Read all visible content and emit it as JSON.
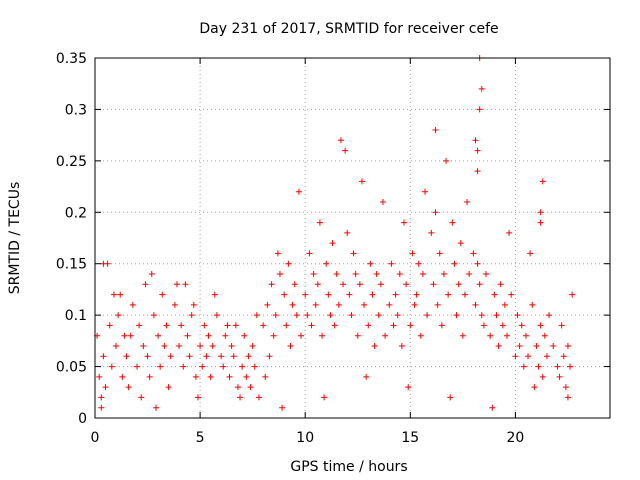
{
  "chart_data": {
    "type": "scatter",
    "title": "Day 231 of 2017, SRMTID for receiver cefe",
    "xlabel": "GPS time / hours",
    "ylabel": "SRMTID / TECUs",
    "xlim": [
      0,
      24.5
    ],
    "ylim": [
      0,
      0.35
    ],
    "x_ticks": [
      0,
      5,
      10,
      15,
      20
    ],
    "x_tick_labels": [
      "0",
      "5",
      "10",
      "15",
      "20"
    ],
    "y_ticks": [
      0,
      0.05,
      0.1,
      0.15,
      0.2,
      0.25,
      0.3,
      0.35
    ],
    "y_tick_labels": [
      "0",
      "0.05",
      "0.1",
      "0.15",
      "0.2",
      "0.25",
      "0.3",
      "0.35"
    ],
    "grid": true,
    "marker": "plus",
    "color": "#ff0000",
    "series": [
      {
        "x": [
          0.1,
          0.2,
          0.3,
          0.4,
          0.5,
          0.6,
          0.7,
          0.8,
          1.0,
          1.1,
          1.2,
          1.3,
          1.4,
          1.5,
          1.6,
          1.8,
          2.0,
          2.1,
          2.2,
          2.3,
          2.4,
          2.5,
          2.6,
          2.8,
          3.0,
          3.1,
          3.2,
          3.3,
          3.4,
          3.5,
          3.6,
          3.8,
          4.0,
          4.1,
          4.2,
          4.3,
          4.4,
          4.5,
          4.6,
          4.8,
          5.0,
          5.1,
          5.2,
          5.3,
          5.4,
          5.5,
          5.6,
          5.8,
          6.0,
          6.1,
          6.2,
          6.3,
          6.4,
          6.5,
          6.6,
          6.8,
          7.0,
          7.1,
          7.2,
          7.3,
          7.4,
          7.5,
          7.6,
          7.8,
          8.0,
          8.1,
          8.2,
          8.3,
          8.4,
          8.5,
          8.6,
          8.8,
          9.0,
          9.1,
          9.2,
          9.3,
          9.4,
          9.5,
          9.6,
          9.8,
          10.0,
          10.1,
          10.2,
          10.3,
          10.4,
          10.5,
          10.6,
          10.8,
          11.0,
          11.1,
          11.2,
          11.3,
          11.4,
          11.5,
          11.6,
          11.8,
          12.0,
          12.1,
          12.2,
          12.3,
          12.4,
          12.5,
          12.6,
          12.8,
          13.0,
          13.1,
          13.2,
          13.3,
          13.4,
          13.5,
          13.6,
          13.8,
          14.0,
          14.1,
          14.2,
          14.3,
          14.4,
          14.5,
          14.6,
          14.8,
          15.0,
          15.1,
          15.2,
          15.3,
          15.4,
          15.5,
          15.6,
          15.8,
          16.0,
          16.1,
          16.2,
          16.3,
          16.4,
          16.5,
          16.6,
          16.8,
          17.0,
          17.1,
          17.2,
          17.3,
          17.4,
          17.5,
          17.6,
          17.8,
          18.0,
          18.1,
          18.2,
          18.3,
          18.4,
          18.5,
          18.6,
          18.8,
          19.0,
          19.1,
          19.2,
          19.3,
          19.4,
          19.5,
          19.6,
          19.8,
          20.0,
          20.1,
          20.2,
          20.3,
          20.4,
          20.5,
          20.6,
          20.8,
          21.0,
          21.1,
          21.2,
          21.3,
          21.4,
          21.5,
          21.6,
          21.8,
          22.0,
          22.1,
          22.2,
          22.3,
          22.4,
          22.5,
          22.6,
          0.4,
          0.9,
          1.7,
          2.7,
          3.9,
          4.7,
          5.7,
          6.7,
          7.7,
          8.7,
          9.7,
          10.7,
          11.7,
          11.9,
          12.7,
          13.7,
          14.7,
          15.7,
          16.2,
          16.7,
          17.7,
          18.2,
          18.3,
          18.4,
          18.3,
          18.1,
          18.2,
          19.7,
          20.7,
          21.2,
          21.3,
          21.2,
          22.7,
          0.3,
          2.9,
          4.9,
          6.9,
          8.9,
          10.9,
          12.9,
          14.9,
          16.9,
          18.9,
          20.9,
          22.5
        ],
        "y": [
          0.08,
          0.04,
          0.02,
          0.06,
          0.03,
          0.15,
          0.09,
          0.05,
          0.07,
          0.1,
          0.12,
          0.04,
          0.08,
          0.06,
          0.03,
          0.11,
          0.05,
          0.09,
          0.02,
          0.07,
          0.13,
          0.06,
          0.04,
          0.1,
          0.08,
          0.05,
          0.12,
          0.07,
          0.09,
          0.03,
          0.06,
          0.11,
          0.07,
          0.09,
          0.05,
          0.13,
          0.08,
          0.06,
          0.1,
          0.04,
          0.07,
          0.05,
          0.09,
          0.06,
          0.08,
          0.04,
          0.07,
          0.1,
          0.06,
          0.05,
          0.08,
          0.09,
          0.04,
          0.07,
          0.06,
          0.03,
          0.05,
          0.08,
          0.04,
          0.06,
          0.03,
          0.07,
          0.05,
          0.02,
          0.09,
          0.04,
          0.11,
          0.06,
          0.13,
          0.08,
          0.1,
          0.14,
          0.12,
          0.09,
          0.15,
          0.07,
          0.11,
          0.13,
          0.1,
          0.08,
          0.12,
          0.1,
          0.16,
          0.09,
          0.14,
          0.11,
          0.13,
          0.08,
          0.15,
          0.12,
          0.1,
          0.17,
          0.09,
          0.14,
          0.11,
          0.13,
          0.18,
          0.12,
          0.1,
          0.16,
          0.14,
          0.08,
          0.13,
          0.11,
          0.09,
          0.15,
          0.12,
          0.07,
          0.14,
          0.1,
          0.13,
          0.08,
          0.11,
          0.15,
          0.09,
          0.12,
          0.1,
          0.14,
          0.07,
          0.13,
          0.09,
          0.16,
          0.11,
          0.12,
          0.15,
          0.08,
          0.14,
          0.1,
          0.18,
          0.13,
          0.2,
          0.11,
          0.16,
          0.09,
          0.14,
          0.12,
          0.19,
          0.15,
          0.1,
          0.13,
          0.17,
          0.08,
          0.12,
          0.14,
          0.16,
          0.11,
          0.15,
          0.13,
          0.1,
          0.09,
          0.14,
          0.08,
          0.12,
          0.1,
          0.07,
          0.13,
          0.09,
          0.11,
          0.08,
          0.12,
          0.06,
          0.1,
          0.07,
          0.09,
          0.05,
          0.08,
          0.06,
          0.11,
          0.07,
          0.05,
          0.09,
          0.04,
          0.08,
          0.06,
          0.1,
          0.07,
          0.05,
          0.04,
          0.09,
          0.06,
          0.03,
          0.07,
          0.05,
          0.15,
          0.12,
          0.08,
          0.14,
          0.13,
          0.11,
          0.12,
          0.09,
          0.1,
          0.16,
          0.22,
          0.19,
          0.27,
          0.26,
          0.23,
          0.21,
          0.19,
          0.22,
          0.28,
          0.25,
          0.21,
          0.26,
          0.3,
          0.32,
          0.35,
          0.27,
          0.24,
          0.18,
          0.16,
          0.2,
          0.23,
          0.19,
          0.12,
          0.01,
          0.01,
          0.02,
          0.02,
          0.01,
          0.02,
          0.04,
          0.03,
          0.02,
          0.01,
          0.03,
          0.02
        ]
      }
    ]
  }
}
